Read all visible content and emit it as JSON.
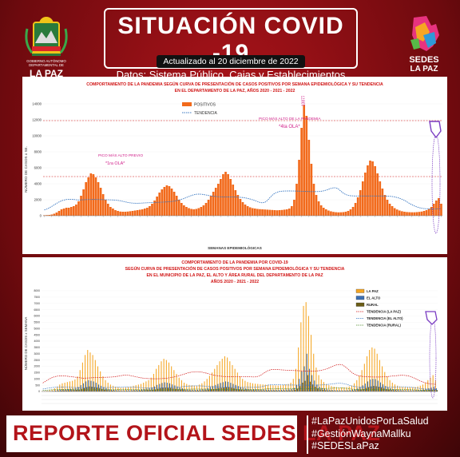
{
  "header": {
    "title": "SITUACIÓN COVID -19",
    "subtitle": "Datos: Sistema Público, Cajas y Establecimientos Privados",
    "updated": "Actualizado  al  20  diciembre de 2022",
    "left_logo_text": [
      "GOBIERNO AUTÓNOMO",
      "DEPARTAMENTAL DE",
      "LA PAZ"
    ],
    "right_logo_text": [
      "SEDES",
      "LA PAZ"
    ]
  },
  "footer": {
    "report": "REPORTE OFICIAL SEDES LA PAZ",
    "hashtags": [
      "#LaPazUnidosPorLaSalud",
      "#GestiónWaynaMallku",
      "#SEDESLaPaz"
    ]
  },
  "colors": {
    "background": "#8a0d12",
    "bars": "#f26a1b",
    "accent_red": "#d01414",
    "la_paz": "#f5a623",
    "el_alto": "#3c6fb4",
    "rural": "#6b5d16"
  },
  "chart_data": [
    {
      "type": "bar",
      "title": "COMPORTAMIENTO DE LA PANDEMIA SEGÚN CURVA DE PRESENTACIÓN DE CASOS POSITIVOS POR SEMANA EPIDEMIOLÓGICA Y SU TENDENCIA",
      "subtitle": "EN EL DEPARTAMENTO DE LA PAZ, AÑOS 2020 - 2021 - 2022",
      "xlabel": "SEMANAS EPIDEMIOLÓGICAS",
      "ylabel": "NÚMERO DE CASOS x SE.",
      "ylim": [
        0,
        14000
      ],
      "yticks": [
        0,
        2000,
        4000,
        6000,
        8000,
        10000,
        12000,
        14000
      ],
      "legend": [
        "POSITIVOS",
        "TENDENCIA"
      ],
      "legend_position": "top-center",
      "annotations": [
        "PICO MÁS ALTO PREVIO",
        "*1ra OLA*",
        "PICO MÁS ALTO DE LA PANDEMIA",
        "*4ta OLA*"
      ],
      "peak_label": "13877",
      "reference_lines": [
        4900,
        11900
      ],
      "series": [
        {
          "name": "POSITIVOS",
          "values": [
            60,
            80,
            100,
            150,
            250,
            400,
            600,
            800,
            900,
            1000,
            1000,
            1100,
            1200,
            1400,
            1800,
            2500,
            3300,
            4200,
            4800,
            5300,
            5200,
            4800,
            4200,
            3500,
            2700,
            2000,
            1500,
            1100,
            900,
            700,
            600,
            520,
            500,
            500,
            520,
            560,
            600,
            650,
            700,
            750,
            800,
            900,
            1000,
            1200,
            1500,
            1900,
            2400,
            2900,
            3300,
            3600,
            3800,
            3700,
            3400,
            3000,
            2500,
            2000,
            1600,
            1300,
            1100,
            950,
            850,
            800,
            850,
            950,
            1100,
            1300,
            1600,
            2000,
            2500,
            3000,
            3500,
            4000,
            4600,
            5200,
            5500,
            5200,
            4600,
            3900,
            3200,
            2600,
            2100,
            1700,
            1400,
            1200,
            1050,
            950,
            900,
            850,
            820,
            800,
            780,
            760,
            740,
            720,
            700,
            680,
            700,
            720,
            760,
            800,
            900,
            1200,
            2000,
            4000,
            7000,
            11000,
            13877,
            12500,
            9500,
            6500,
            4000,
            2600,
            1800,
            1300,
            1000,
            800,
            650,
            550,
            480,
            440,
            420,
            430,
            450,
            500,
            600,
            800,
            1100,
            1600,
            2300,
            3200,
            4300,
            5400,
            6300,
            6900,
            6800,
            6200,
            5300,
            4300,
            3400,
            2600,
            2000,
            1500,
            1200,
            950,
            780,
            650,
            560,
            500,
            460,
            440,
            430,
            430,
            450,
            480,
            520,
            600,
            700,
            850,
            1100,
            1500,
            1900,
            2200,
            1500
          ]
        }
      ]
    },
    {
      "type": "bar",
      "title": "COMPORTAMIENTO DE LA PANDEMIA POR COVID-19",
      "subtitle": [
        "SEGÚN CURVA DE PRESENTACIÓN DE CASOS POSITIVOS POR SEMANA EPIDEMIOLÓGICA Y SU TENDENCIA",
        "EN EL  MUNICIPIO DE LA PAZ, EL ALTO Y ÁREA RURAL DEL DEPARTAMENTO DE LA PAZ",
        "AÑOS 2020 - 2021 - 2022"
      ],
      "ylabel": "NÚMERO DE CASOS x SEMANA",
      "ylim": [
        0,
        8000
      ],
      "yticks": [
        0,
        500,
        1000,
        1500,
        2000,
        2500,
        3000,
        3500,
        4000,
        4500,
        5000,
        5500,
        6000,
        6500,
        7000,
        7500,
        8000
      ],
      "legend": [
        "LA PAZ",
        "EL ALTO",
        "RURAL",
        "TENDENCIA (LA PAZ)",
        "TENDENCIA (EL ALTO)",
        "TENDENCIA (RURAL)"
      ],
      "legend_position": "top-right",
      "series": [
        {
          "name": "LA PAZ",
          "values": [
            30,
            40,
            60,
            90,
            150,
            250,
            400,
            550,
            650,
            700,
            750,
            800,
            850,
            950,
            1200,
            1700,
            2300,
            2900,
            3300,
            3100,
            2900,
            2500,
            2000,
            1600,
            1200,
            900,
            700,
            550,
            450,
            380,
            330,
            300,
            300,
            320,
            350,
            400,
            450,
            500,
            550,
            600,
            700,
            800,
            900,
            1100,
            1400,
            1800,
            2100,
            2400,
            2600,
            2500,
            2300,
            2000,
            1700,
            1400,
            1100,
            900,
            700,
            600,
            520,
            480,
            460,
            480,
            550,
            650,
            800,
            1000,
            1250,
            1500,
            1800,
            2100,
            2400,
            2600,
            2800,
            2700,
            2400,
            2100,
            1800,
            1500,
            1200,
            1000,
            850,
            750,
            700,
            650,
            620,
            600,
            580,
            560,
            540,
            520,
            500,
            490,
            480,
            470,
            490,
            520,
            560,
            600,
            700,
            1000,
            1800,
            3500,
            5500,
            6800,
            7100,
            6000,
            4500,
            3000,
            1900,
            1300,
            950,
            750,
            600,
            500,
            430,
            380,
            350,
            330,
            320,
            330,
            350,
            400,
            480,
            650,
            900,
            1250,
            1700,
            2200,
            2800,
            3300,
            3500,
            3400,
            3000,
            2500,
            2000,
            1550,
            1200,
            900,
            700,
            560,
            460,
            400,
            360,
            340,
            330,
            330,
            340,
            360,
            400,
            460,
            550,
            700,
            900,
            1100,
            1300,
            900
          ]
        },
        {
          "name": "EL ALTO",
          "values": [
            10,
            15,
            20,
            30,
            50,
            80,
            120,
            160,
            190,
            200,
            210,
            220,
            240,
            280,
            350,
            500,
            650,
            800,
            900,
            850,
            800,
            700,
            550,
            450,
            350,
            260,
            200,
            160,
            130,
            110,
            95,
            90,
            90,
            95,
            100,
            115,
            130,
            145,
            160,
            175,
            200,
            230,
            260,
            320,
            400,
            520,
            600,
            680,
            730,
            700,
            650,
            560,
            480,
            400,
            320,
            260,
            200,
            170,
            150,
            140,
            135,
            140,
            160,
            190,
            230,
            290,
            360,
            430,
            520,
            600,
            680,
            740,
            800,
            770,
            690,
            600,
            520,
            430,
            350,
            290,
            245,
            215,
            200,
            185,
            175,
            170,
            165,
            160,
            155,
            150,
            145,
            140,
            138,
            135,
            140,
            150,
            160,
            175,
            200,
            290,
            520,
            1000,
            1600,
            2000,
            3000,
            1800,
            1300,
            870,
            550,
            380,
            280,
            220,
            175,
            145,
            125,
            110,
            100,
            95,
            92,
            95,
            100,
            115,
            140,
            190,
            260,
            360,
            490,
            630,
            800,
            950,
            1000,
            980,
            860,
            720,
            570,
            440,
            340,
            260,
            200,
            160,
            130,
            115,
            105,
            100,
            98,
            98,
            100,
            105,
            115,
            135,
            160,
            200,
            260,
            320,
            370,
            260
          ]
        },
        {
          "name": "RURAL",
          "values": [
            5,
            5,
            10,
            15,
            20,
            30,
            50,
            70,
            80,
            90,
            95,
            100,
            110,
            120,
            150,
            210,
            280,
            350,
            400,
            380,
            350,
            300,
            250,
            200,
            150,
            110,
            90,
            70,
            55,
            48,
            42,
            40,
            40,
            42,
            45,
            50,
            55,
            60,
            70,
            75,
            85,
            100,
            110,
            135,
            170,
            220,
            260,
            290,
            320,
            300,
            280,
            240,
            210,
            170,
            140,
            110,
            90,
            75,
            65,
            60,
            58,
            60,
            70,
            80,
            100,
            125,
            155,
            185,
            220,
            260,
            290,
            320,
            345,
            330,
            300,
            260,
            220,
            185,
            150,
            125,
            105,
            95,
            88,
            82,
            78,
            75,
            72,
            70,
            68,
            66,
            64,
            62,
            60,
            58,
            60,
            65,
            70,
            75,
            88,
            125,
            225,
            430,
            700,
            850,
            1300,
            780,
            560,
            380,
            240,
            165,
            120,
            95,
            75,
            62,
            55,
            48,
            44,
            42,
            40,
            42,
            45,
            50,
            60,
            80,
            115,
            155,
            210,
            270,
            350,
            410,
            440,
            420,
            370,
            310,
            250,
            190,
            145,
            115,
            90,
            70,
            57,
            50,
            45,
            43,
            42,
            42,
            43,
            45,
            50,
            58,
            70,
            88,
            115,
            140,
            160,
            115
          ]
        }
      ]
    }
  ]
}
